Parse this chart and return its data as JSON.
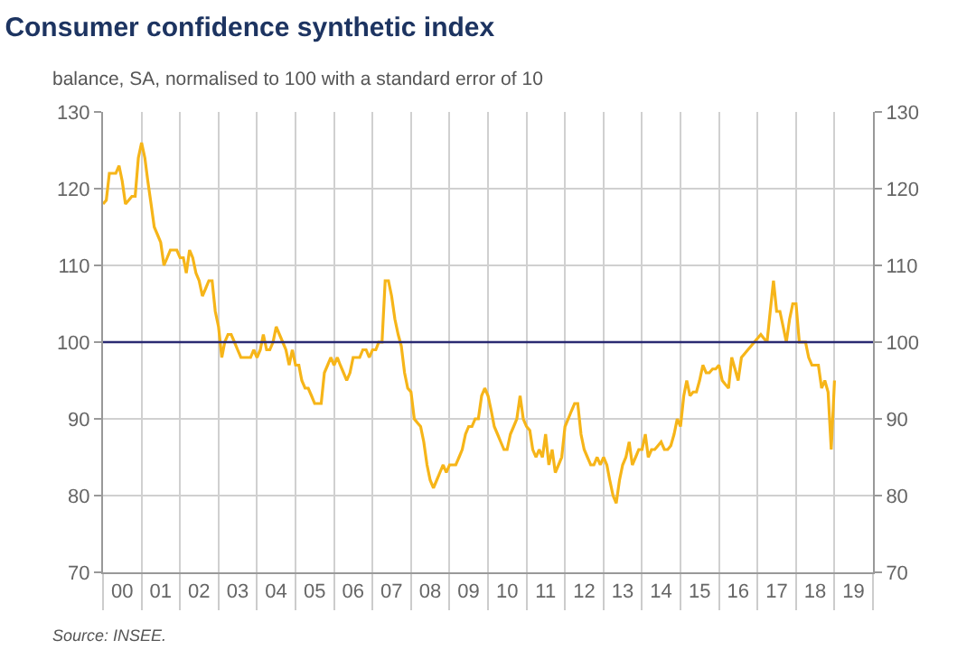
{
  "chart_data": {
    "type": "line",
    "title": "Consumer confidence synthetic index",
    "subtitle": "balance, SA, normalised to 100 with a standard error of 10",
    "annotations": [
      "Source: INSEE."
    ],
    "x": [
      "2000-01",
      "2000-02",
      "2000-03",
      "2000-04",
      "2000-05",
      "2000-06",
      "2000-07",
      "2000-08",
      "2000-09",
      "2000-10",
      "2000-11",
      "2000-12",
      "2001-01",
      "2001-02",
      "2001-03",
      "2001-04",
      "2001-05",
      "2001-06",
      "2001-07",
      "2001-08",
      "2001-09",
      "2001-10",
      "2001-11",
      "2001-12",
      "2002-01",
      "2002-02",
      "2002-03",
      "2002-04",
      "2002-05",
      "2002-06",
      "2002-07",
      "2002-08",
      "2002-09",
      "2002-10",
      "2002-11",
      "2002-12",
      "2003-01",
      "2003-02",
      "2003-03",
      "2003-04",
      "2003-05",
      "2003-06",
      "2003-07",
      "2003-08",
      "2003-09",
      "2003-10",
      "2003-11",
      "2003-12",
      "2004-01",
      "2004-02",
      "2004-03",
      "2004-04",
      "2004-05",
      "2004-06",
      "2004-07",
      "2004-08",
      "2004-09",
      "2004-10",
      "2004-11",
      "2004-12",
      "2005-01",
      "2005-02",
      "2005-03",
      "2005-04",
      "2005-05",
      "2005-06",
      "2005-07",
      "2005-08",
      "2005-09",
      "2005-10",
      "2005-11",
      "2005-12",
      "2006-01",
      "2006-02",
      "2006-03",
      "2006-04",
      "2006-05",
      "2006-06",
      "2006-07",
      "2006-08",
      "2006-09",
      "2006-10",
      "2006-11",
      "2006-12",
      "2007-01",
      "2007-02",
      "2007-03",
      "2007-04",
      "2007-05",
      "2007-06",
      "2007-07",
      "2007-08",
      "2007-09",
      "2007-10",
      "2007-11",
      "2007-12",
      "2008-01",
      "2008-02",
      "2008-03",
      "2008-04",
      "2008-05",
      "2008-06",
      "2008-07",
      "2008-08",
      "2008-09",
      "2008-10",
      "2008-11",
      "2008-12",
      "2009-01",
      "2009-02",
      "2009-03",
      "2009-04",
      "2009-05",
      "2009-06",
      "2009-07",
      "2009-08",
      "2009-09",
      "2009-10",
      "2009-11",
      "2009-12",
      "2010-01",
      "2010-02",
      "2010-03",
      "2010-04",
      "2010-05",
      "2010-06",
      "2010-07",
      "2010-08",
      "2010-09",
      "2010-10",
      "2010-11",
      "2010-12",
      "2011-01",
      "2011-02",
      "2011-03",
      "2011-04",
      "2011-05",
      "2011-06",
      "2011-07",
      "2011-08",
      "2011-09",
      "2011-10",
      "2011-11",
      "2011-12",
      "2012-01",
      "2012-02",
      "2012-03",
      "2012-04",
      "2012-05",
      "2012-06",
      "2012-07",
      "2012-08",
      "2012-09",
      "2012-10",
      "2012-11",
      "2012-12",
      "2013-01",
      "2013-02",
      "2013-03",
      "2013-04",
      "2013-05",
      "2013-06",
      "2013-07",
      "2013-08",
      "2013-09",
      "2013-10",
      "2013-11",
      "2013-12",
      "2014-01",
      "2014-02",
      "2014-03",
      "2014-04",
      "2014-05",
      "2014-06",
      "2014-07",
      "2014-08",
      "2014-09",
      "2014-10",
      "2014-11",
      "2014-12",
      "2015-01",
      "2015-02",
      "2015-03",
      "2015-04",
      "2015-05",
      "2015-06",
      "2015-07",
      "2015-08",
      "2015-09",
      "2015-10",
      "2015-11",
      "2015-12",
      "2016-01",
      "2016-02",
      "2016-03",
      "2016-04",
      "2016-05",
      "2016-06",
      "2016-07",
      "2016-08",
      "2016-09",
      "2016-10",
      "2016-11",
      "2016-12",
      "2017-01",
      "2017-02",
      "2017-03",
      "2017-04",
      "2017-05",
      "2017-06",
      "2017-07",
      "2017-08",
      "2017-09",
      "2017-10",
      "2017-11",
      "2017-12",
      "2018-01",
      "2018-02",
      "2018-03",
      "2018-04",
      "2018-05",
      "2018-06",
      "2018-07",
      "2018-08",
      "2018-09",
      "2018-10",
      "2018-11",
      "2018-12",
      "2019-01"
    ],
    "series": [
      {
        "color": "#f6b519",
        "values": [
          118,
          118.5,
          122,
          122,
          122,
          123,
          121,
          118,
          118.5,
          119,
          119,
          124,
          126,
          124,
          121,
          118,
          115,
          114,
          113,
          110,
          111,
          112,
          112,
          112,
          111,
          111,
          109,
          112,
          111,
          109,
          108,
          106,
          107,
          108,
          108,
          104,
          102,
          98,
          100,
          101,
          101,
          100,
          99,
          98,
          98,
          98,
          98,
          99,
          98,
          99,
          101,
          99,
          99,
          100,
          102,
          101,
          100,
          99,
          97,
          99,
          97,
          97,
          95,
          94,
          94,
          93,
          92,
          92,
          92,
          96,
          97,
          98,
          97,
          98,
          97,
          96,
          95,
          96,
          98,
          98,
          98,
          99,
          99,
          98,
          99,
          99,
          100,
          100,
          108,
          108,
          106,
          103,
          101,
          99.5,
          96,
          94,
          93.5,
          90,
          89.5,
          89,
          87,
          84,
          82,
          81,
          82,
          83,
          84,
          83,
          84,
          84,
          84,
          85,
          86,
          88,
          89,
          89,
          90,
          90,
          93,
          94,
          93,
          91,
          89,
          88,
          87,
          86,
          86,
          88,
          89,
          90,
          93,
          90,
          89,
          88.5,
          86,
          85,
          86,
          85,
          88,
          84,
          86,
          83,
          84,
          85,
          89,
          90,
          91,
          92,
          92,
          88,
          86,
          85,
          84,
          84,
          85,
          84,
          85,
          84,
          82,
          80,
          79,
          82,
          84,
          85,
          87,
          84,
          85,
          86,
          86,
          88,
          85,
          86,
          86,
          86.5,
          87,
          86,
          86,
          86.5,
          88,
          90,
          89,
          93,
          95,
          93,
          93.5,
          93.5,
          95,
          97,
          96,
          96,
          96.5,
          96.5,
          97,
          95,
          94.5,
          94,
          98,
          96.5,
          95,
          98,
          98.5,
          99,
          99.5,
          100,
          100.5,
          101,
          100.5,
          100,
          104,
          108,
          104,
          104,
          102,
          100,
          103,
          105,
          105,
          100,
          100,
          100,
          98,
          97,
          97,
          97,
          94,
          95,
          93.5,
          86,
          95
        ]
      }
    ],
    "ylim": [
      70,
      130
    ],
    "yticks": [
      70,
      80,
      90,
      100,
      110,
      120,
      130
    ],
    "y2lim": [
      70,
      130
    ],
    "y2ticks": [
      70,
      80,
      90,
      100,
      110,
      120,
      130
    ],
    "xlim": [
      "2000-01",
      "2020-01"
    ],
    "xticks": [
      {
        "value": "2000-07",
        "label": "00"
      },
      {
        "value": "2001-07",
        "label": "01"
      },
      {
        "value": "2002-07",
        "label": "02"
      },
      {
        "value": "2003-07",
        "label": "03"
      },
      {
        "value": "2004-07",
        "label": "04"
      },
      {
        "value": "2005-07",
        "label": "05"
      },
      {
        "value": "2006-07",
        "label": "06"
      },
      {
        "value": "2007-07",
        "label": "07"
      },
      {
        "value": "2008-07",
        "label": "08"
      },
      {
        "value": "2009-07",
        "label": "09"
      },
      {
        "value": "2010-07",
        "label": "10"
      },
      {
        "value": "2011-07",
        "label": "11"
      },
      {
        "value": "2012-07",
        "label": "12"
      },
      {
        "value": "2013-07",
        "label": "13"
      },
      {
        "value": "2014-07",
        "label": "14"
      },
      {
        "value": "2015-07",
        "label": "15"
      },
      {
        "value": "2016-07",
        "label": "16"
      },
      {
        "value": "2017-07",
        "label": "17"
      },
      {
        "value": "2018-07",
        "label": "18"
      },
      {
        "value": "2019-07",
        "label": "19"
      },
      {
        "value": "2000-01",
        "label": null
      },
      {
        "value": "2001-01",
        "label": null
      },
      {
        "value": "2002-01",
        "label": null
      },
      {
        "value": "2003-01",
        "label": null
      },
      {
        "value": "2004-01",
        "label": null
      },
      {
        "value": "2005-01",
        "label": null
      },
      {
        "value": "2006-01",
        "label": null
      },
      {
        "value": "2007-01",
        "label": null
      },
      {
        "value": "2008-01",
        "label": null
      },
      {
        "value": "2009-01",
        "label": null
      },
      {
        "value": "2010-01",
        "label": null
      },
      {
        "value": "2011-01",
        "label": null
      },
      {
        "value": "2012-01",
        "label": null
      },
      {
        "value": "2013-01",
        "label": null
      },
      {
        "value": "2014-01",
        "label": null
      },
      {
        "value": "2015-01",
        "label": null
      },
      {
        "value": "2016-01",
        "label": null
      },
      {
        "value": "2017-01",
        "label": null
      },
      {
        "value": "2018-01",
        "label": null
      },
      {
        "value": "2019-01",
        "label": null
      },
      {
        "value": "2020-01",
        "label": null
      }
    ],
    "ref_lines": [
      {
        "axis": "y",
        "value": 100,
        "color": "#2a2a72"
      }
    ],
    "grid": true,
    "line_style": "solid"
  }
}
